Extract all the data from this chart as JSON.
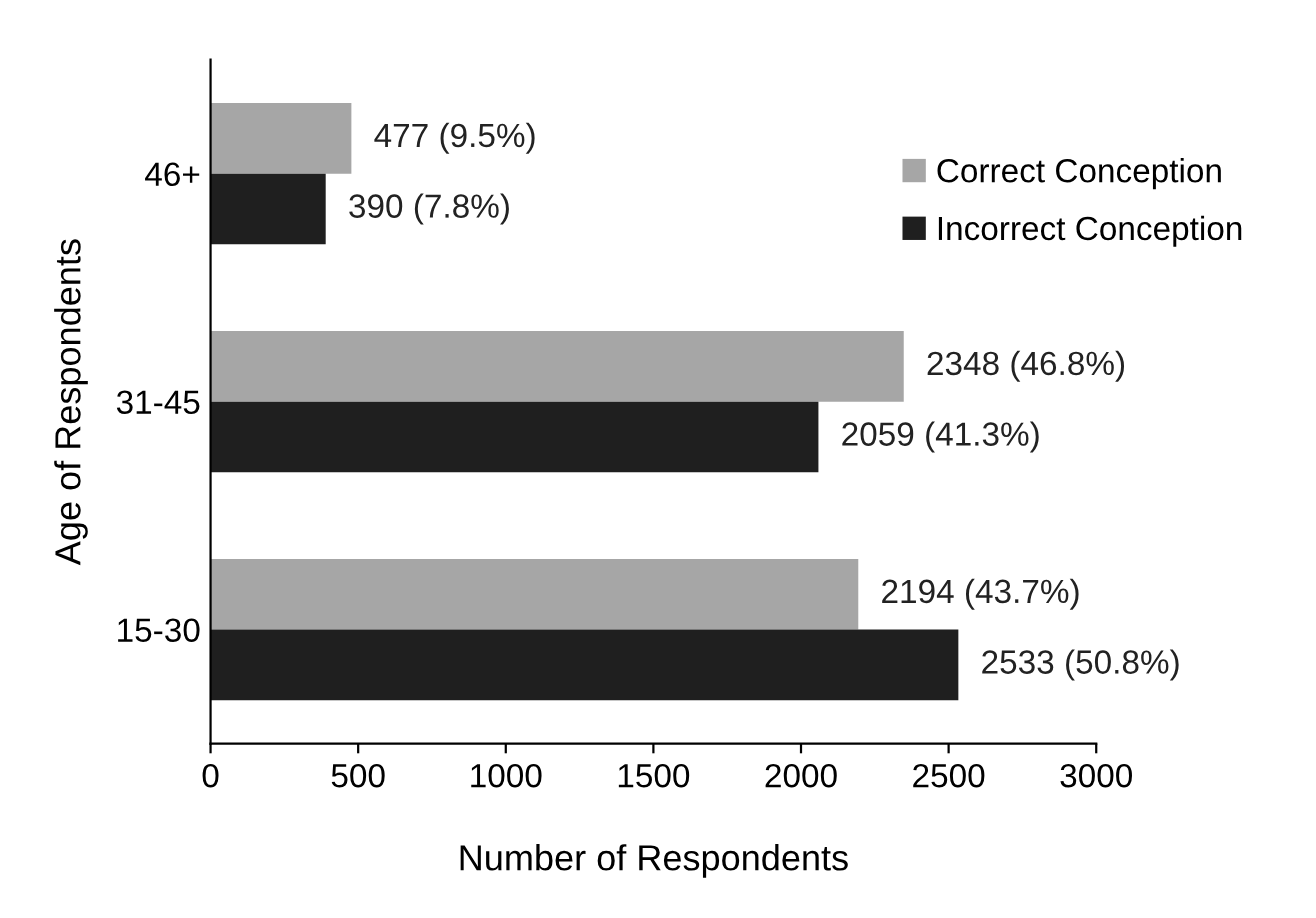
{
  "chart_data": {
    "type": "bar",
    "orientation": "horizontal",
    "xlabel": "Number of Respondents",
    "ylabel": "Age of Respondents",
    "categories": [
      "46+",
      "31-45",
      "15-30"
    ],
    "series": [
      {
        "name": "Correct Conception",
        "color": "#a6a6a6",
        "values": [
          477,
          2348,
          2194
        ],
        "value_labels": [
          "477 (9.5%)",
          "2348 (46.8%)",
          "2194 (43.7%)"
        ]
      },
      {
        "name": "Incorrect Conception",
        "color": "#1f1f1f",
        "values": [
          390,
          2059,
          2533
        ],
        "value_labels": [
          "390 (7.8%)",
          "2059 (41.3%)",
          "2533 (50.8%)"
        ]
      }
    ],
    "xlim": [
      0,
      3000
    ],
    "xticks": [
      0,
      500,
      1000,
      1500,
      2000,
      2500,
      3000
    ],
    "grid": false,
    "legend": "top right"
  }
}
